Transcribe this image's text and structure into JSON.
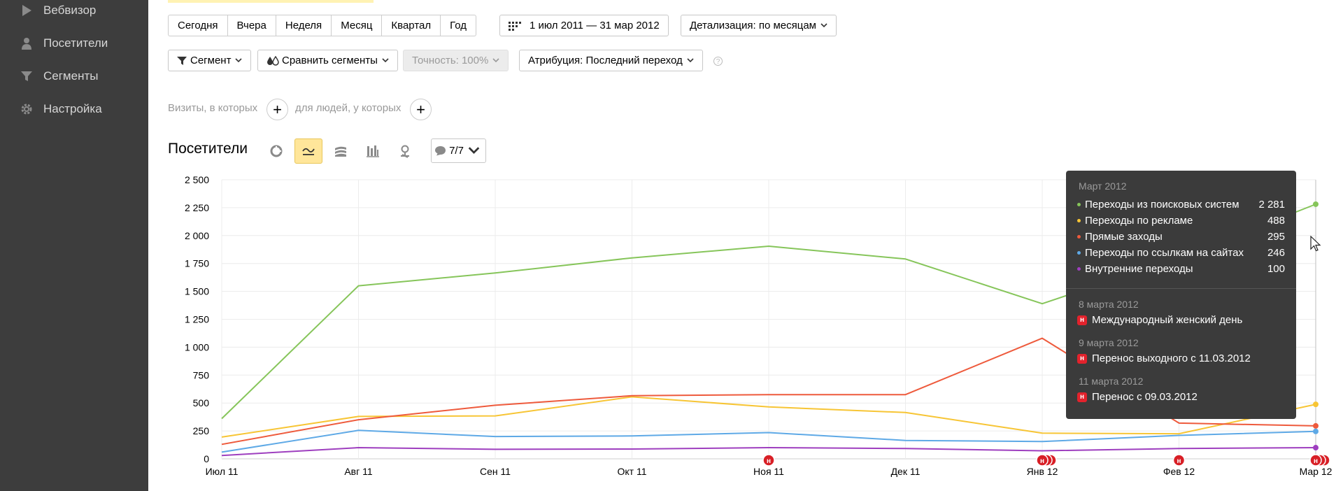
{
  "sidebar": {
    "items": [
      {
        "label": "Вебвизор",
        "icon": "play-icon"
      },
      {
        "label": "Посетители",
        "icon": "person-icon"
      },
      {
        "label": "Сегменты",
        "icon": "filter-icon"
      },
      {
        "label": "Настройка",
        "icon": "gear-icon"
      }
    ]
  },
  "period_buttons": [
    "Сегодня",
    "Вчера",
    "Неделя",
    "Месяц",
    "Квартал",
    "Год"
  ],
  "date_range": "1 июл 2011 — 31 мар 2012",
  "detail": "Детализация: по месяцам",
  "segment_button": "Сегмент",
  "compare_button": "Сравнить сегменты",
  "accuracy_button": "Точность: 100%",
  "attribution_button": "Атрибуция: Последний переход",
  "help_label": "?",
  "segment_conditions": {
    "visits_label": "Визиты, в которых",
    "people_label": "для людей, у которых",
    "plus": "+"
  },
  "chart_panel": {
    "title": "Посетители",
    "view_icons": [
      "pie-chart-icon",
      "line-chart-icon",
      "area-chart-icon",
      "bar-chart-icon",
      "map-icon"
    ],
    "active_view": "line-chart-icon",
    "annotations_label": "7/7"
  },
  "chart_data": {
    "type": "line",
    "x": [
      "Июл 11",
      "Авг 11",
      "Сен 11",
      "Окт 11",
      "Ноя 11",
      "Дек 11",
      "Янв 12",
      "Фев 12",
      "Мар 12"
    ],
    "yticks": [
      "0",
      "250",
      "500",
      "750",
      "1 000",
      "1 250",
      "1 500",
      "1 750",
      "2 000",
      "2 250",
      "2 500"
    ],
    "ylim": [
      0,
      2500
    ],
    "grid": true,
    "series": [
      {
        "name": "Переходы из поисковых систем",
        "color": "#86c55a",
        "values": [
          360,
          1550,
          1665,
          1800,
          1905,
          1790,
          1390,
          1800,
          2281
        ]
      },
      {
        "name": "Переходы по рекламе",
        "color": "#f7c535",
        "values": [
          195,
          380,
          385,
          555,
          465,
          415,
          230,
          225,
          488
        ]
      },
      {
        "name": "Прямые заходы",
        "color": "#ee5a3c",
        "values": [
          130,
          350,
          480,
          565,
          575,
          575,
          1080,
          320,
          295
        ]
      },
      {
        "name": "Переходы по ссылкам на сайтах",
        "color": "#5ea9e6",
        "values": [
          60,
          255,
          200,
          205,
          235,
          165,
          155,
          210,
          246
        ]
      },
      {
        "name": "Внутренние переходы",
        "color": "#9e3fbf",
        "values": [
          30,
          100,
          85,
          88,
          100,
          92,
          72,
          92,
          100
        ]
      }
    ],
    "event_markers": [
      {
        "x": "Ноя 11",
        "count": 1
      },
      {
        "x": "Янв 12",
        "count": 3
      },
      {
        "x": "Фев 12",
        "count": 1
      },
      {
        "x": "Мар 12",
        "count": 3
      }
    ],
    "marker_label": "н"
  },
  "tooltip": {
    "month": "Март 2012",
    "rows": [
      {
        "name": "Переходы из поисковых систем",
        "value": "2 281",
        "color": "#86c55a"
      },
      {
        "name": "Переходы по рекламе",
        "value": "488",
        "color": "#f7c535"
      },
      {
        "name": "Прямые заходы",
        "value": "295",
        "color": "#ee5a3c"
      },
      {
        "name": "Переходы по ссылкам на сайтах",
        "value": "246",
        "color": "#5ea9e6"
      },
      {
        "name": "Внутренние переходы",
        "value": "100",
        "color": "#9e3fbf"
      }
    ],
    "events": [
      {
        "date": "8 марта 2012",
        "title": "Международный женский день"
      },
      {
        "date": "9 марта 2012",
        "title": "Перенос выходного с 11.03.2012"
      },
      {
        "date": "11 марта 2012",
        "title": "Перенос с 09.03.2012"
      }
    ],
    "badge": "н"
  }
}
